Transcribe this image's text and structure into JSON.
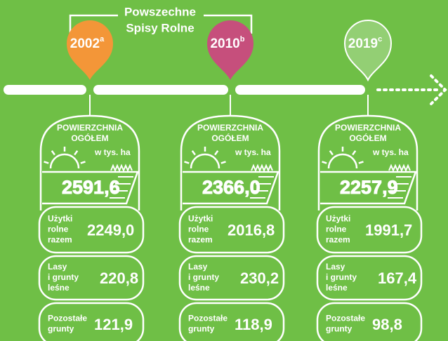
{
  "header": {
    "title": [
      "Powszechne",
      "Spisy Rolne"
    ]
  },
  "columns": [
    {
      "year": "2002",
      "note": "a",
      "heading": [
        "POWIERZCHNIA",
        "OGÓŁEM"
      ],
      "unit": "w tys. ha",
      "total": "2591,6",
      "rows": [
        {
          "label": [
            "Użytki",
            "rolne",
            "razem"
          ],
          "value": "2249,0"
        },
        {
          "label": [
            "Lasy",
            "i grunty",
            "leśne"
          ],
          "value": "220,8"
        },
        {
          "label": [
            "Pozostałe",
            "grunty"
          ],
          "value": "121,9"
        }
      ]
    },
    {
      "year": "2010",
      "note": "b",
      "heading": [
        "POWIERZCHNIA",
        "OGÓŁEM"
      ],
      "unit": "w tys. ha",
      "total": "2366,0",
      "rows": [
        {
          "label": [
            "Użytki",
            "rolne",
            "razem"
          ],
          "value": "2016,8"
        },
        {
          "label": [
            "Lasy",
            "i grunty",
            "leśne"
          ],
          "value": "230,2"
        },
        {
          "label": [
            "Pozostałe",
            "grunty"
          ],
          "value": "118,9"
        }
      ]
    },
    {
      "year": "2019",
      "note": "c",
      "heading": [
        "POWIERZCHNIA",
        "OGÓŁEM"
      ],
      "unit": "w tys. ha",
      "total": "2257,9",
      "rows": [
        {
          "label": [
            "Użytki",
            "rolne",
            "razem"
          ],
          "value": "1991,7"
        },
        {
          "label": [
            "Lasy",
            "i grunty",
            "leśne"
          ],
          "value": "167,4"
        },
        {
          "label": [
            "Pozostałe",
            "grunty"
          ],
          "value": "98,8"
        }
      ]
    }
  ]
}
